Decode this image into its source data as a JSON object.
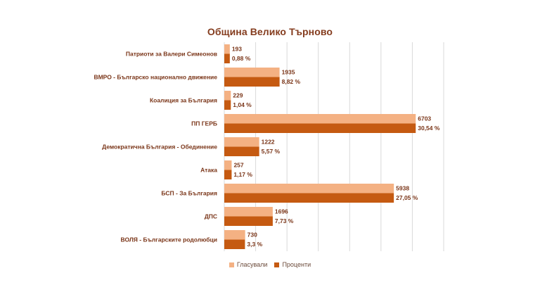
{
  "colors": {
    "votes": "#f4b183",
    "percent": "#c55a11",
    "title": "#843c1e",
    "category_label": "#7a3518",
    "value_label": "#7a3518",
    "grid": "#d9d9d9"
  },
  "chart_data": {
    "type": "bar",
    "orientation": "horizontal",
    "title": "Община Велико Търново",
    "categories": [
      "Патриоти за Валери Симеонов",
      "ВМРО - Българско национално движение",
      "Коалиция за България",
      "ПП ГЕРБ",
      "Демократична България - Обединение",
      "Атака",
      "БСП - За България",
      "ДПС",
      "ВОЛЯ - Българските родолюбци"
    ],
    "series": [
      {
        "name": "Гласували",
        "values": [
          193,
          1935,
          229,
          6703,
          1222,
          257,
          5938,
          1696,
          730
        ],
        "labels": [
          "193",
          "1935",
          "229",
          "6703",
          "1222",
          "257",
          "5938",
          "1696",
          "730"
        ]
      },
      {
        "name": "Проценти",
        "values": [
          0.88,
          8.82,
          1.04,
          30.54,
          5.57,
          1.17,
          27.05,
          7.73,
          3.3
        ],
        "labels": [
          "0,88 %",
          "8,82 %",
          "1,04 %",
          "30,54 %",
          "5,57 %",
          "1,17 %",
          "27,05 %",
          "7,73 %",
          "3,3 %"
        ]
      }
    ],
    "xlim": [
      0,
      35
    ],
    "grid": true,
    "legend_position": "bottom"
  }
}
